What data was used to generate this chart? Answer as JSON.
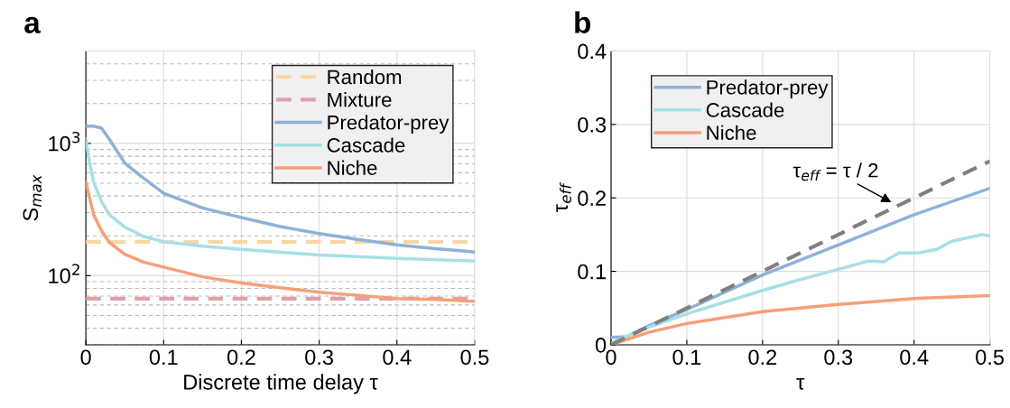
{
  "chart_data": [
    {
      "type": "line",
      "title": "a",
      "xlabel": "Discrete time delay τ",
      "ylabel": "S$_{max}$",
      "log": "y",
      "grid": true,
      "legend": "top right",
      "xlim": [
        0,
        0.5
      ],
      "xticks": [
        0,
        0.1,
        0.2,
        0.3,
        0.4,
        0.5
      ],
      "ylim": [
        30,
        5000
      ],
      "yticks": [
        {
          "value": 100,
          "label": "10$^{2}$"
        },
        {
          "value": 1000,
          "label": "10$^{3}$"
        }
      ],
      "series": [
        {
          "name": "Random",
          "color": "#f7d6a3",
          "line_style": "dashed",
          "x": [
            0,
            0.5
          ],
          "values": [
            180,
            180
          ]
        },
        {
          "name": "Mixture",
          "color": "#e0a0a8",
          "line_style": "dashed",
          "x": [
            0,
            0.5
          ],
          "values": [
            67,
            67
          ]
        },
        {
          "name": "Predator-prey",
          "color": "#8fb1d6",
          "line_style": "solid",
          "x": [
            0,
            0.01,
            0.02,
            0.03,
            0.05,
            0.07,
            0.1,
            0.15,
            0.2,
            0.25,
            0.3,
            0.35,
            0.4,
            0.45,
            0.5
          ],
          "values": [
            1350,
            1350,
            1310,
            1080,
            710,
            570,
            420,
            325,
            275,
            235,
            208,
            188,
            171,
            160,
            151
          ]
        },
        {
          "name": "Cascade",
          "color": "#a6e0e6",
          "line_style": "solid",
          "x": [
            0,
            0.005,
            0.01,
            0.02,
            0.03,
            0.05,
            0.075,
            0.1,
            0.15,
            0.2,
            0.3,
            0.4,
            0.5
          ],
          "values": [
            1080,
            710,
            510,
            365,
            290,
            233,
            197,
            181,
            167,
            158,
            143,
            135,
            129
          ]
        },
        {
          "name": "Niche",
          "color": "#f4a07a",
          "line_style": "solid",
          "x": [
            0,
            0.005,
            0.01,
            0.02,
            0.03,
            0.05,
            0.075,
            0.1,
            0.15,
            0.2,
            0.25,
            0.3,
            0.35,
            0.4,
            0.45,
            0.5
          ],
          "values": [
            510,
            385,
            290,
            220,
            179,
            145,
            126,
            116,
            98,
            88,
            81,
            75,
            71,
            67,
            66,
            64
          ]
        }
      ]
    },
    {
      "type": "line",
      "title": "b",
      "xlabel": "τ",
      "ylabel": "τ$_{eff}$",
      "grid": true,
      "legend": "top left",
      "xlim": [
        0,
        0.5
      ],
      "xticks": [
        0,
        0.1,
        0.2,
        0.3,
        0.4,
        0.5
      ],
      "ylim": [
        0,
        0.4
      ],
      "yticks": [
        0,
        0.1,
        0.2,
        0.3,
        0.4
      ],
      "annotations": [
        {
          "text": "τ$_{eff}$ = τ / 2",
          "x": 0.37,
          "y": 0.194
        }
      ],
      "series": [
        {
          "name": "Predator-prey",
          "color": "#8fb1d6",
          "line_style": "solid",
          "x": [
            0,
            0.02,
            0.05,
            0.1,
            0.2,
            0.3,
            0.4,
            0.5
          ],
          "values": [
            0.01,
            0.011,
            0.026,
            0.048,
            0.095,
            0.136,
            0.177,
            0.213
          ]
        },
        {
          "name": "Cascade",
          "color": "#a6e0e6",
          "line_style": "solid",
          "x": [
            0,
            0.05,
            0.1,
            0.2,
            0.24,
            0.29,
            0.34,
            0.36,
            0.38,
            0.405,
            0.43,
            0.45,
            0.49,
            0.5
          ],
          "values": [
            0.002,
            0.024,
            0.042,
            0.074,
            0.086,
            0.1,
            0.114,
            0.113,
            0.125,
            0.125,
            0.13,
            0.141,
            0.15,
            0.148
          ]
        },
        {
          "name": "Niche",
          "color": "#f4a07a",
          "line_style": "solid",
          "x": [
            0,
            0.05,
            0.1,
            0.2,
            0.3,
            0.4,
            0.5
          ],
          "values": [
            0,
            0.017,
            0.029,
            0.045,
            0.055,
            0.063,
            0.067
          ]
        },
        {
          "color": "#808080",
          "line_style": "dashed",
          "x": [
            0,
            0.5
          ],
          "values": [
            0,
            0.25
          ]
        }
      ]
    }
  ]
}
